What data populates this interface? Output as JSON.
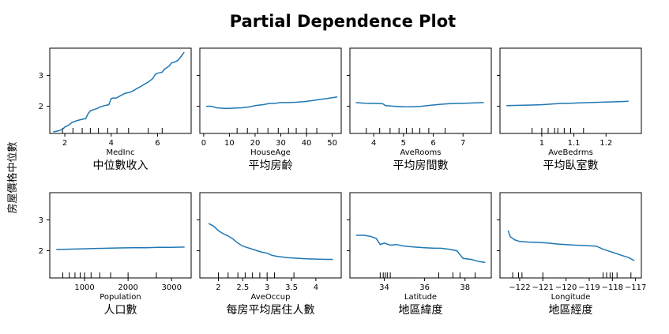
{
  "figure": {
    "title": "Partial Dependence Plot",
    "ylabel": "房屋價格中位數"
  },
  "chart_data": [
    {
      "type": "line",
      "xlabel": "MedInc",
      "subtitle": "中位數收入",
      "xlim": [
        1.35,
        7.45
      ],
      "ylim": [
        1.12,
        3.88
      ],
      "xticks": [
        2,
        4,
        6
      ],
      "yticks": [
        2,
        3
      ],
      "show_yticklabels": true,
      "deciles": [
        1.9,
        2.35,
        2.75,
        3.1,
        3.45,
        3.85,
        4.25,
        4.75,
        5.6,
        6.2
      ],
      "x": [
        1.5,
        1.7,
        1.9,
        2.0,
        2.15,
        2.3,
        2.4,
        2.5,
        2.7,
        2.9,
        3.0,
        3.1,
        3.2,
        3.4,
        3.5,
        3.7,
        3.9,
        4.0,
        4.1,
        4.2,
        4.3,
        4.5,
        4.6,
        4.8,
        5.0,
        5.1,
        5.3,
        5.4,
        5.6,
        5.8,
        5.9,
        6.0,
        6.2,
        6.3,
        6.5,
        6.6,
        6.8,
        6.9,
        7.0,
        7.15
      ],
      "y": [
        1.17,
        1.2,
        1.25,
        1.33,
        1.38,
        1.47,
        1.5,
        1.53,
        1.57,
        1.6,
        1.75,
        1.85,
        1.88,
        1.93,
        1.97,
        2.02,
        2.05,
        2.25,
        2.27,
        2.26,
        2.3,
        2.38,
        2.42,
        2.45,
        2.52,
        2.57,
        2.65,
        2.7,
        2.78,
        2.9,
        3.03,
        3.07,
        3.1,
        3.2,
        3.3,
        3.4,
        3.45,
        3.5,
        3.6,
        3.75
      ]
    },
    {
      "type": "line",
      "xlabel": "HouseAge",
      "subtitle": "平均房齡",
      "xlim": [
        -1.5,
        53.5
      ],
      "ylim": [
        1.12,
        3.88
      ],
      "xticks": [
        0,
        10,
        20,
        30,
        40,
        50
      ],
      "yticks": [
        2,
        3
      ],
      "show_yticklabels": false,
      "deciles": [
        13,
        17,
        21,
        25,
        29,
        33,
        36,
        40,
        44
      ],
      "x": [
        1,
        3,
        5,
        8,
        10,
        12,
        15,
        18,
        20,
        23,
        25,
        28,
        30,
        33,
        36,
        39,
        42,
        45,
        48,
        52
      ],
      "y": [
        2.0,
        2.0,
        1.95,
        1.93,
        1.93,
        1.94,
        1.95,
        1.98,
        2.02,
        2.05,
        2.08,
        2.1,
        2.12,
        2.12,
        2.13,
        2.15,
        2.18,
        2.22,
        2.25,
        2.3
      ]
    },
    {
      "type": "line",
      "xlabel": "AveRooms",
      "subtitle": "平均房間數",
      "xlim": [
        3.2,
        7.95
      ],
      "ylim": [
        1.12,
        3.88
      ],
      "xticks": [
        4,
        5,
        6,
        7
      ],
      "yticks": [
        2,
        3
      ],
      "show_yticklabels": false,
      "deciles": [
        3.75,
        4.2,
        4.55,
        4.85,
        5.1,
        5.3,
        5.55,
        5.85,
        6.4
      ],
      "x": [
        3.4,
        3.7,
        4.0,
        4.3,
        4.4,
        4.7,
        5.0,
        5.3,
        5.6,
        5.9,
        6.2,
        6.5,
        6.8,
        7.1,
        7.4,
        7.7
      ],
      "y": [
        2.12,
        2.1,
        2.09,
        2.08,
        2.02,
        2.0,
        1.98,
        1.98,
        2.0,
        2.03,
        2.06,
        2.08,
        2.09,
        2.1,
        2.11,
        2.12
      ]
    },
    {
      "type": "line",
      "xlabel": "AveBedrms",
      "subtitle": "平均臥室數",
      "xlim": [
        0.87,
        1.31
      ],
      "ylim": [
        1.12,
        3.88
      ],
      "xticks": [
        1.0,
        1.1,
        1.2
      ],
      "yticks": [
        2,
        3
      ],
      "show_yticklabels": false,
      "deciles": [
        0.97,
        1.0,
        1.02,
        1.04,
        1.05,
        1.07,
        1.09,
        1.13
      ],
      "x": [
        0.89,
        0.93,
        0.97,
        1.0,
        1.03,
        1.06,
        1.09,
        1.12,
        1.15,
        1.18,
        1.21,
        1.24,
        1.27
      ],
      "y": [
        2.02,
        2.03,
        2.04,
        2.05,
        2.07,
        2.09,
        2.1,
        2.11,
        2.12,
        2.13,
        2.14,
        2.15,
        2.16
      ]
    },
    {
      "type": "line",
      "xlabel": "Population",
      "subtitle": "人口數",
      "xlim": [
        200,
        3450
      ],
      "ylim": [
        1.12,
        3.88
      ],
      "xticks": [
        1000,
        2000,
        3000
      ],
      "yticks": [
        2,
        3
      ],
      "show_yticklabels": true,
      "deciles": [
        500,
        650,
        780,
        900,
        1000,
        1150,
        1350,
        1600,
        2000,
        2650
      ],
      "x": [
        350,
        600,
        900,
        1200,
        1500,
        1800,
        2100,
        2400,
        2700,
        3000,
        3300
      ],
      "y": [
        2.04,
        2.05,
        2.06,
        2.07,
        2.08,
        2.09,
        2.1,
        2.1,
        2.11,
        2.11,
        2.12
      ]
    },
    {
      "type": "line",
      "xlabel": "AveOccup",
      "subtitle": "每房平均居住人數",
      "xlim": [
        1.62,
        4.52
      ],
      "ylim": [
        1.12,
        3.88
      ],
      "xticks": [
        2.0,
        2.5,
        3.0,
        3.5,
        4.0
      ],
      "yticks": [
        2,
        3
      ],
      "show_yticklabels": false,
      "deciles": [
        2.0,
        2.2,
        2.4,
        2.55,
        2.7,
        2.85,
        3.0,
        3.15,
        3.55
      ],
      "x": [
        1.8,
        1.9,
        2.0,
        2.1,
        2.2,
        2.3,
        2.4,
        2.5,
        2.6,
        2.7,
        2.8,
        2.9,
        3.0,
        3.1,
        3.2,
        3.3,
        3.4,
        3.6,
        3.8,
        4.0,
        4.2,
        4.35
      ],
      "y": [
        2.88,
        2.8,
        2.65,
        2.55,
        2.48,
        2.38,
        2.25,
        2.15,
        2.1,
        2.05,
        2.0,
        1.95,
        1.92,
        1.85,
        1.82,
        1.8,
        1.78,
        1.76,
        1.74,
        1.73,
        1.72,
        1.72
      ]
    },
    {
      "type": "line",
      "xlabel": "Latitude",
      "subtitle": "地區緯度",
      "xlim": [
        32.3,
        39.3
      ],
      "ylim": [
        1.12,
        3.88
      ],
      "xticks": [
        34,
        36,
        38
      ],
      "yticks": [
        2,
        3
      ],
      "show_yticklabels": false,
      "deciles": [
        33.8,
        33.95,
        34.05,
        34.15,
        34.3,
        36.7,
        37.4,
        37.75,
        38.5
      ],
      "x": [
        32.6,
        33.0,
        33.3,
        33.6,
        33.8,
        34.0,
        34.3,
        34.6,
        35.0,
        35.5,
        36.0,
        36.5,
        36.8,
        37.2,
        37.6,
        37.9,
        38.3,
        38.7,
        39.0
      ],
      "y": [
        2.5,
        2.5,
        2.47,
        2.4,
        2.2,
        2.25,
        2.18,
        2.2,
        2.15,
        2.12,
        2.1,
        2.08,
        2.08,
        2.05,
        2.0,
        1.75,
        1.72,
        1.65,
        1.62
      ]
    },
    {
      "type": "line",
      "xlabel": "Longitude",
      "subtitle": "地區經度",
      "xlim": [
        -122.85,
        -116.75
      ],
      "ylim": [
        1.12,
        3.88
      ],
      "xticks": [
        -122,
        -121,
        -120,
        -119,
        -118,
        -117
      ],
      "yticks": [
        2,
        3
      ],
      "show_yticklabels": false,
      "deciles": [
        -122.3,
        -122.05,
        -121.9,
        -121.0,
        -118.4,
        -118.25,
        -118.1,
        -118.0,
        -117.8,
        -117.2
      ],
      "x": [
        -122.5,
        -122.4,
        -122.2,
        -122.0,
        -121.6,
        -121.2,
        -120.8,
        -120.4,
        -120.0,
        -119.6,
        -119.2,
        -118.7,
        -118.4,
        -118.2,
        -118.0,
        -117.6,
        -117.3,
        -117.05
      ],
      "y": [
        2.65,
        2.45,
        2.35,
        2.3,
        2.28,
        2.27,
        2.25,
        2.22,
        2.2,
        2.18,
        2.17,
        2.15,
        2.05,
        2.0,
        1.95,
        1.85,
        1.78,
        1.68
      ]
    }
  ]
}
